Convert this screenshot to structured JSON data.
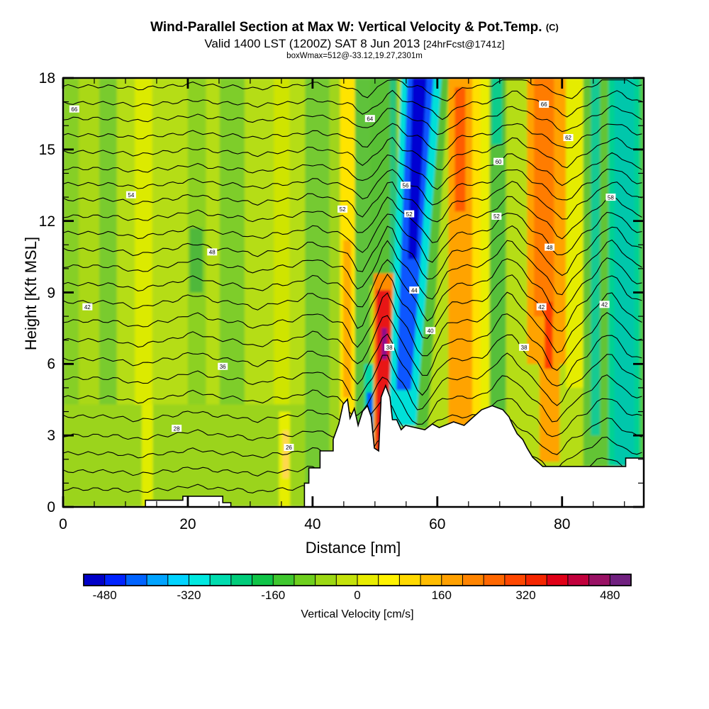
{
  "header": {
    "title": "Wind-Parallel Section at Max W: Vertical Velocity & Pot.Temp.",
    "title_unit": "(C)",
    "subtitle": "Valid 1400 LST (1200Z) SAT 8 Jun 2013",
    "subtitle_tag": "[24hrFcst@1741z]",
    "runinfo": "boxWmax=512@-33.12,19.27,2301m"
  },
  "chart_data": {
    "type": "heatmap",
    "title": "Wind-Parallel Section at Max W: Vertical Velocity & Pot.Temp. (C)",
    "x_axis": {
      "label": "Distance [nm]",
      "ticks": [
        0,
        20,
        40,
        60,
        80
      ],
      "minor_ticks": [
        5,
        10,
        15,
        25,
        30,
        35,
        45,
        50,
        55,
        65,
        70,
        75,
        85,
        90
      ],
      "range": [
        0,
        93.1
      ]
    },
    "y_axis": {
      "label": "Height [Kft MSL]",
      "ticks": [
        0,
        3,
        6,
        9,
        12,
        15,
        18
      ],
      "minor_ticks": [
        1,
        2,
        4,
        5,
        7,
        8,
        10,
        11,
        13,
        14,
        16,
        17
      ],
      "range": [
        0,
        18
      ]
    },
    "colorbar": {
      "label": "Vertical Velocity [cm/s]",
      "ticks": [
        -480,
        -320,
        -160,
        0,
        160,
        320,
        480
      ],
      "range": [
        -520,
        520
      ],
      "colors": [
        "#0000c8",
        "#0023ff",
        "#0063ff",
        "#00a3ff",
        "#00d3ff",
        "#00e8e0",
        "#00dcae",
        "#00cc7a",
        "#0fc447",
        "#3fc72e",
        "#6ecf1d",
        "#9cd813",
        "#c4e20b",
        "#e8ec00",
        "#fff200",
        "#ffd900",
        "#ffbc00",
        "#ffa000",
        "#ff8400",
        "#ff6700",
        "#ff4700",
        "#f52600",
        "#e00017",
        "#c1003c",
        "#991164",
        "#70207f"
      ]
    },
    "field_bands": [
      {
        "x": [
          0,
          93.1
        ],
        "y": [
          0,
          18
        ],
        "c": "#b5dd15"
      },
      {
        "x": [
          0,
          2.5
        ],
        "c": "#86cf27"
      },
      {
        "x": [
          2.5,
          5.8
        ],
        "c": "#aad813"
      },
      {
        "x": [
          5.8,
          8.6
        ],
        "c": "#79cb2e"
      },
      {
        "x": [
          11.5,
          14.3
        ],
        "c": "#dcea00"
      },
      {
        "x": [
          20,
          22.9
        ],
        "c": "#8cd122"
      },
      {
        "x": [
          25.1,
          29.1
        ],
        "c": "#7ecd2a"
      },
      {
        "x": [
          33.8,
          36.3
        ],
        "c": "#cfe403"
      },
      {
        "x": [
          38.8,
          42.7
        ],
        "c": "#74ca31"
      },
      {
        "x": [
          42.7,
          44.4
        ],
        "c": "#a0d51a"
      },
      {
        "x": [
          0,
          38.8
        ],
        "y": [
          0,
          4.3
        ],
        "c": "#9bd41c"
      },
      {
        "x": [
          12.6,
          14.4
        ],
        "y": [
          0,
          4.3
        ],
        "c": "#e0ec00"
      },
      {
        "x": [
          34.6,
          36.4
        ],
        "y": [
          0,
          4.0
        ],
        "c": "#e6ee00"
      },
      {
        "x": [
          35.2,
          36.2
        ],
        "y": [
          1.2,
          3.2
        ],
        "c": "#ffd84d"
      },
      {
        "x": [
          20.3,
          22.4
        ],
        "y": [
          9.0,
          11.7
        ],
        "c": "#4fb83a"
      },
      {
        "x": [
          44.4,
          46.8
        ],
        "y": [
          0,
          18
        ],
        "c": "#ffe400"
      },
      {
        "x": [
          44.9,
          46.2
        ],
        "y": [
          4.6,
          11.2
        ],
        "c": "#ffae00"
      },
      {
        "x": [
          46.8,
          49.2
        ],
        "y": [
          0,
          18
        ],
        "c": "#5ec23a"
      },
      {
        "x": [
          48.3,
          49.8
        ],
        "y": [
          1.6,
          6.0
        ],
        "c": "#00d6a8"
      },
      {
        "x": [
          48.7,
          49.6
        ],
        "y": [
          2.1,
          4.8
        ],
        "c": "#0055ff"
      },
      {
        "x": [
          49.2,
          53.6
        ],
        "y": [
          9.3,
          18
        ],
        "c": "#58bf35"
      },
      {
        "x": [
          52.4,
          53.4
        ],
        "y": [
          9.3,
          18
        ],
        "c": "#2bc47c"
      },
      {
        "x": [
          49.8,
          53.0
        ],
        "y": [
          0,
          9.8
        ],
        "c": "#ff8c00"
      },
      {
        "x": [
          50.2,
          52.5
        ],
        "y": [
          0,
          9.1
        ],
        "c": "#e81717"
      },
      {
        "x": [
          51.1,
          51.9
        ],
        "y": [
          6.2,
          7.5
        ],
        "c": "#8b0f8b"
      },
      {
        "pts": [
          [
            54.2,
            18
          ],
          [
            60.7,
            18
          ],
          [
            56.6,
            3.4
          ],
          [
            52.1,
            3.4
          ]
        ],
        "c": "#00e0d8"
      },
      {
        "pts": [
          [
            55.2,
            18
          ],
          [
            59.4,
            18
          ],
          [
            55.8,
            4.9
          ],
          [
            53.4,
            4.9
          ]
        ],
        "c": "#0a57ff"
      },
      {
        "pts": [
          [
            56.0,
            18
          ],
          [
            58.3,
            18
          ],
          [
            56.7,
            10.4
          ],
          [
            55.3,
            10.4
          ]
        ],
        "c": "#0000d2"
      },
      {
        "pts": [
          [
            60.7,
            18
          ],
          [
            61.8,
            18
          ],
          [
            58.5,
            3.3
          ],
          [
            56.6,
            3.3
          ]
        ],
        "c": "#58bf35"
      },
      {
        "x": [
          61.8,
          65.6
        ],
        "y": [
          3.0,
          18
        ],
        "c": "#ffa300"
      },
      {
        "x": [
          62.8,
          64.5
        ],
        "y": [
          12.4,
          17.6
        ],
        "c": "#ff5c00"
      },
      {
        "x": [
          65.6,
          66.9
        ],
        "y": [
          3.0,
          18
        ],
        "c": "#ffe000"
      },
      {
        "x": [
          66.9,
          68.4
        ],
        "y": [
          3.0,
          18
        ],
        "c": "#e9ee00"
      },
      {
        "x": [
          68.4,
          71.0
        ],
        "y": [
          1.8,
          18
        ],
        "c": "#57bf3a"
      },
      {
        "x": [
          68.7,
          70.4
        ],
        "y": [
          15.2,
          18
        ],
        "c": "#10cc8c"
      },
      {
        "x": [
          74.4,
          80.6
        ],
        "y": [
          6.0,
          18
        ],
        "c": "#ffa300"
      },
      {
        "x": [
          76.4,
          79.6
        ],
        "y": [
          1.9,
          6.0
        ],
        "c": "#ffa300"
      },
      {
        "x": [
          75.5,
          78.7
        ],
        "y": [
          8.0,
          18
        ],
        "c": "#ff7b00"
      },
      {
        "x": [
          77.2,
          78.5
        ],
        "y": [
          5.8,
          8.6
        ],
        "c": "#ff3c00"
      },
      {
        "x": [
          80.6,
          83.4
        ],
        "y": [
          5.0,
          18
        ],
        "c": "#e5ec00"
      },
      {
        "x": [
          83.4,
          87.4
        ],
        "y": [
          1.7,
          18
        ],
        "c": "#63c434"
      },
      {
        "x": [
          84.6,
          86.1
        ],
        "y": [
          3.0,
          18
        ],
        "c": "#17ca92"
      },
      {
        "x": [
          87.4,
          93.1
        ],
        "y": [
          1.7,
          18
        ],
        "c": "#00d292"
      },
      {
        "x": [
          88.4,
          91.6
        ],
        "y": [
          1.7,
          18
        ],
        "c": "#00c7ab"
      },
      {
        "x": [
          92.5,
          93.1
        ],
        "y": [
          1.7,
          18
        ],
        "c": "#4fc93c"
      }
    ],
    "contours": {
      "note": "potential temperature isentropes, deg C, 2C interval",
      "levels": [
        [
          17.65,
          68
        ],
        [
          16.95,
          66
        ],
        [
          16.3,
          64
        ],
        [
          15.6,
          62
        ],
        [
          14.9,
          60
        ],
        [
          14.2,
          58
        ],
        [
          13.55,
          56
        ],
        [
          12.9,
          54
        ],
        [
          12.2,
          52
        ],
        [
          11.5,
          50
        ],
        [
          10.8,
          48
        ],
        [
          10.1,
          46
        ],
        [
          9.35,
          44
        ],
        [
          8.6,
          42
        ],
        [
          7.8,
          40
        ],
        [
          7.0,
          38
        ],
        [
          6.2,
          36
        ],
        [
          5.4,
          34
        ],
        [
          4.6,
          32
        ],
        [
          3.8,
          30
        ],
        [
          3.0,
          28
        ],
        [
          2.25,
          26
        ],
        [
          1.5,
          24
        ],
        [
          0.75,
          22
        ]
      ],
      "wave": [
        [
          12,
          2.5,
          -0.18,
          0
        ],
        [
          21,
          2.5,
          0.22,
          0
        ],
        [
          31,
          2.2,
          -0.2,
          0
        ],
        [
          40,
          2.0,
          0.25,
          0
        ],
        [
          47.8,
          1.7,
          -0.8,
          0.12
        ],
        [
          52.3,
          1.5,
          0.85,
          0.1
        ],
        [
          59.3,
          2.3,
          -1.15,
          0.3
        ],
        [
          71.8,
          2.6,
          0.85,
          0.1
        ],
        [
          80,
          2.3,
          -0.95,
          0.15
        ],
        [
          88,
          2.6,
          0.85,
          0.1
        ]
      ],
      "amp": [
        0.5,
        0.85,
        8,
        5.2
      ],
      "labels": [
        [
          66,
          1.8,
          16.7
        ],
        [
          66,
          77.1,
          16.9
        ],
        [
          58,
          87.8,
          13.0
        ],
        [
          64,
          49.2,
          16.3
        ],
        [
          54,
          10.9,
          13.1
        ],
        [
          48,
          23.9,
          10.7
        ],
        [
          42,
          3.9,
          8.4
        ],
        [
          28,
          18.2,
          3.3
        ],
        [
          36,
          25.6,
          5.9
        ],
        [
          26,
          36.2,
          2.5
        ],
        [
          52,
          44.8,
          12.5
        ],
        [
          56,
          54.9,
          13.5
        ],
        [
          52,
          55.5,
          12.3
        ],
        [
          44,
          56.3,
          9.1
        ],
        [
          38,
          52.3,
          6.7
        ],
        [
          40,
          58.9,
          7.4
        ],
        [
          38,
          73.9,
          6.7
        ],
        [
          42,
          76.7,
          8.4
        ],
        [
          48,
          78.0,
          10.9
        ],
        [
          52,
          69.5,
          12.2
        ],
        [
          42,
          86.8,
          8.5
        ],
        [
          60,
          69.8,
          14.5
        ],
        [
          62,
          81.0,
          15.5
        ]
      ]
    },
    "terrain": [
      [
        [
          38.7,
          0
        ],
        [
          38.7,
          1.0
        ],
        [
          39.4,
          1.0
        ],
        [
          39.4,
          1.64
        ],
        [
          41.2,
          1.64
        ],
        [
          41.2,
          2.35
        ],
        [
          43.3,
          2.35
        ],
        [
          43.3,
          2.83
        ],
        [
          44.2,
          3.48
        ],
        [
          44.9,
          4.31
        ],
        [
          45.6,
          4.52
        ],
        [
          46.0,
          3.72
        ],
        [
          46.7,
          4.13
        ],
        [
          47.3,
          3.42
        ],
        [
          48.0,
          4.01
        ],
        [
          48.8,
          4.25
        ],
        [
          49.4,
          3.78
        ],
        [
          49.9,
          2.47
        ],
        [
          50.6,
          2.35
        ],
        [
          51.0,
          4.61
        ],
        [
          51.7,
          5.09
        ],
        [
          52.4,
          4.61
        ],
        [
          52.8,
          3.66
        ],
        [
          53.5,
          3.66
        ],
        [
          54.2,
          3.24
        ],
        [
          54.9,
          3.42
        ],
        [
          58.0,
          3.24
        ],
        [
          59.2,
          3.48
        ],
        [
          60.3,
          3.33
        ],
        [
          62.6,
          3.57
        ],
        [
          64.3,
          3.42
        ],
        [
          65.8,
          3.78
        ],
        [
          67.1,
          4.08
        ],
        [
          68.8,
          4.25
        ],
        [
          70.5,
          4.08
        ],
        [
          71.5,
          3.78
        ],
        [
          72.1,
          3.42
        ],
        [
          72.8,
          3.07
        ],
        [
          73.7,
          2.83
        ],
        [
          74.4,
          2.47
        ],
        [
          75.3,
          2.08
        ],
        [
          76.2,
          1.87
        ],
        [
          76.9,
          1.7
        ],
        [
          90.2,
          1.7
        ],
        [
          90.2,
          2.05
        ],
        [
          93.1,
          2.05
        ],
        [
          93.1,
          0
        ]
      ],
      [
        [
          13.2,
          0
        ],
        [
          13.2,
          0.28
        ],
        [
          19.2,
          0.28
        ],
        [
          19.2,
          0.45
        ],
        [
          25.6,
          0.45
        ],
        [
          25.6,
          0.18
        ],
        [
          26.9,
          0.18
        ],
        [
          26.9,
          0
        ]
      ]
    ]
  }
}
